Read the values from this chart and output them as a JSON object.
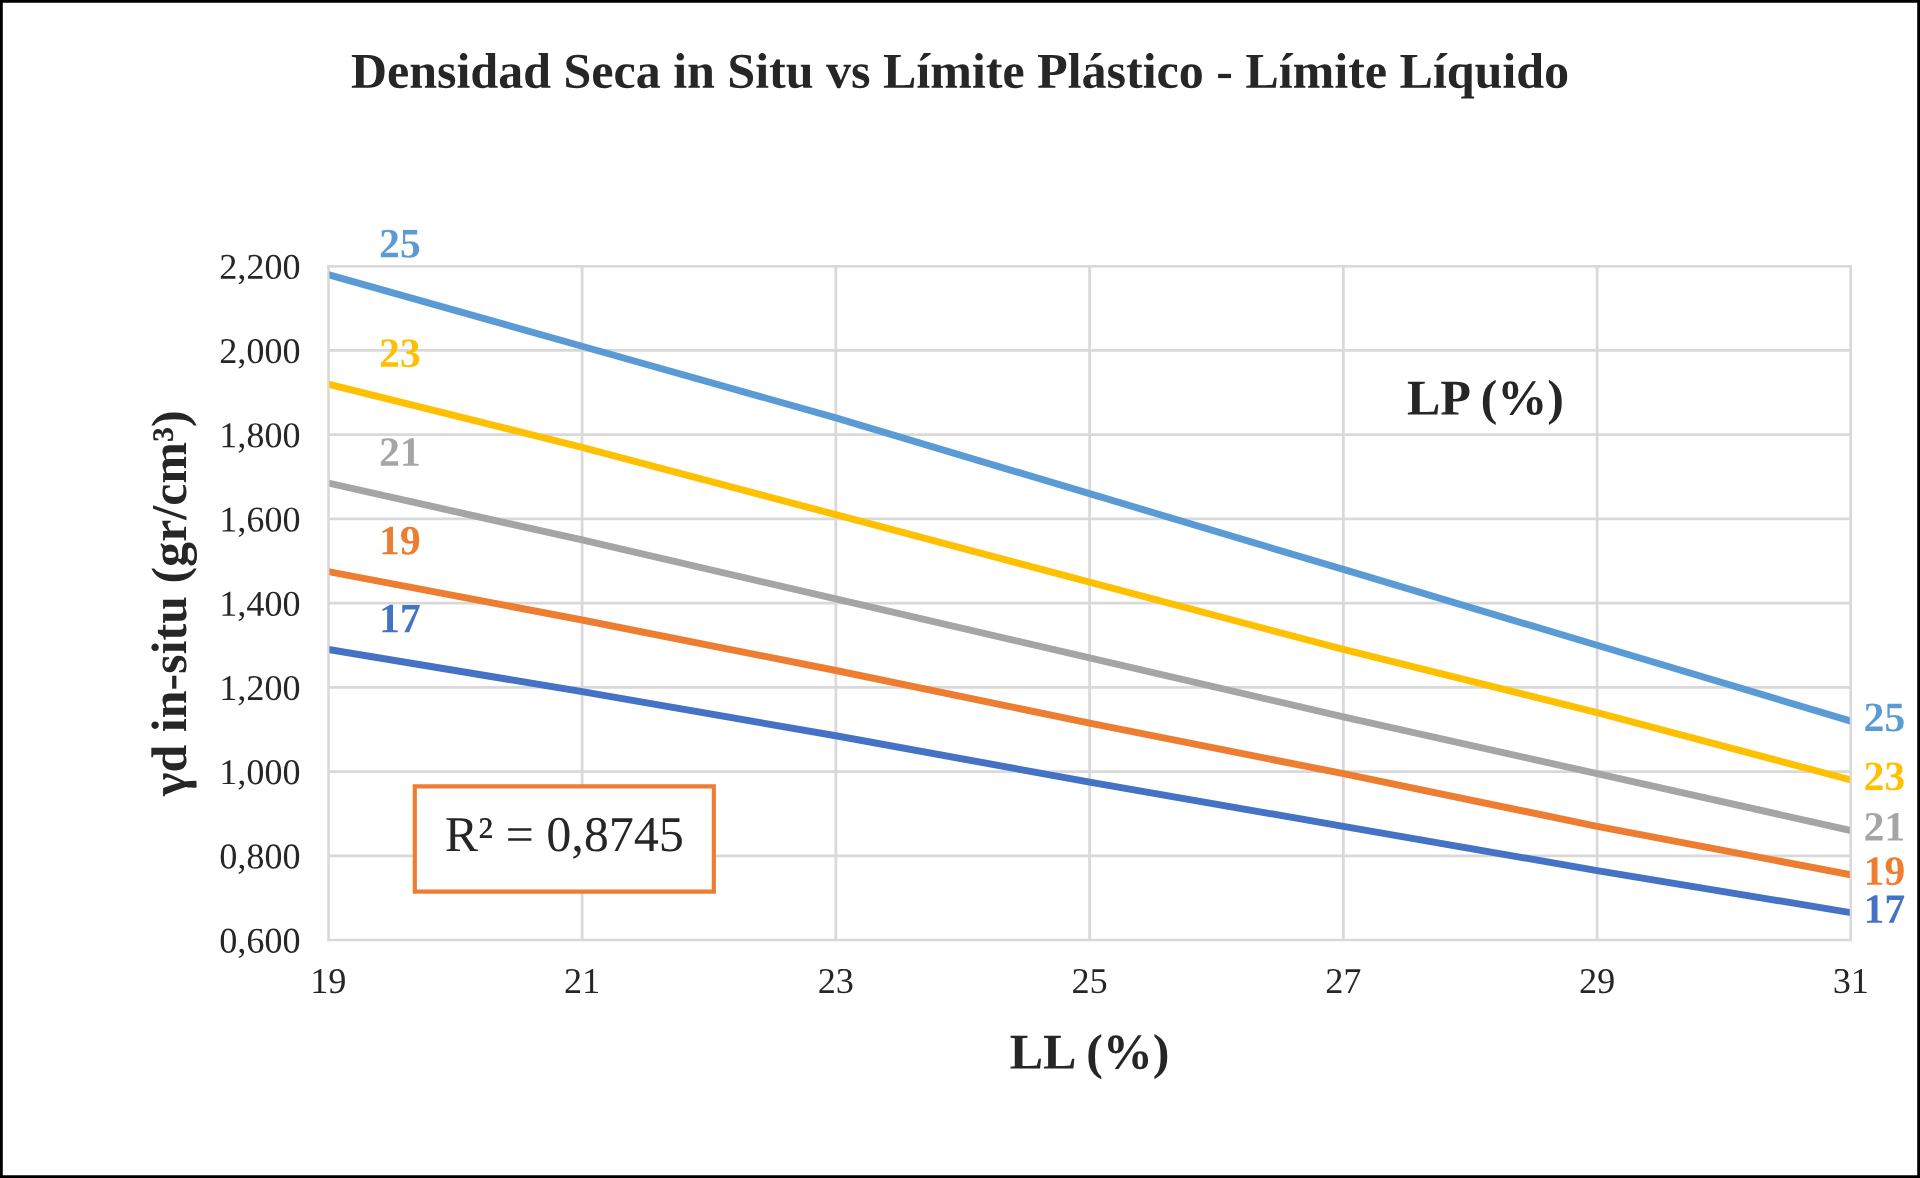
{
  "chart_data": {
    "type": "line",
    "title": "Densidad Seca in Situ vs Límite Plástico - Límite Líquido",
    "xlabel": "LL (%)",
    "ylabel": "γd in-situ (gr/cm³)",
    "x": [
      19,
      21,
      23,
      25,
      27,
      29,
      31
    ],
    "series": [
      {
        "name": "25",
        "color": "#5b9bd5",
        "values": [
          2.18,
          2.01,
          1.84,
          1.66,
          1.48,
          1.3,
          1.12
        ]
      },
      {
        "name": "23",
        "color": "#ffc000",
        "values": [
          1.92,
          1.77,
          1.61,
          1.45,
          1.29,
          1.14,
          0.98
        ]
      },
      {
        "name": "21",
        "color": "#a5a5a5",
        "values": [
          1.685,
          1.55,
          1.41,
          1.27,
          1.13,
          0.995,
          0.86
        ]
      },
      {
        "name": "19",
        "color": "#ed7d31",
        "values": [
          1.475,
          1.36,
          1.24,
          1.115,
          0.995,
          0.87,
          0.755
        ]
      },
      {
        "name": "17",
        "color": "#4472c4",
        "values": [
          1.29,
          1.19,
          1.085,
          0.975,
          0.87,
          0.765,
          0.665
        ]
      }
    ],
    "xlim": [
      19,
      31
    ],
    "xticks": [
      19,
      21,
      23,
      25,
      27,
      29,
      31
    ],
    "ylim": [
      0.6,
      2.2
    ],
    "yticks": [
      {
        "value": 0.6,
        "label": "0,600"
      },
      {
        "value": 0.8,
        "label": "0,800"
      },
      {
        "value": 1.0,
        "label": "1,000"
      },
      {
        "value": 1.2,
        "label": "1,200"
      },
      {
        "value": 1.4,
        "label": "1,400"
      },
      {
        "value": 1.6,
        "label": "1,600"
      },
      {
        "value": 1.8,
        "label": "1,800"
      },
      {
        "value": 2.0,
        "label": "2,000"
      },
      {
        "value": 2.2,
        "label": "2,200"
      }
    ],
    "annotations": [
      "LP (%)",
      "R² = 0,8745"
    ],
    "grid": true,
    "legend": false,
    "marker": "none",
    "line_style": "solid"
  }
}
